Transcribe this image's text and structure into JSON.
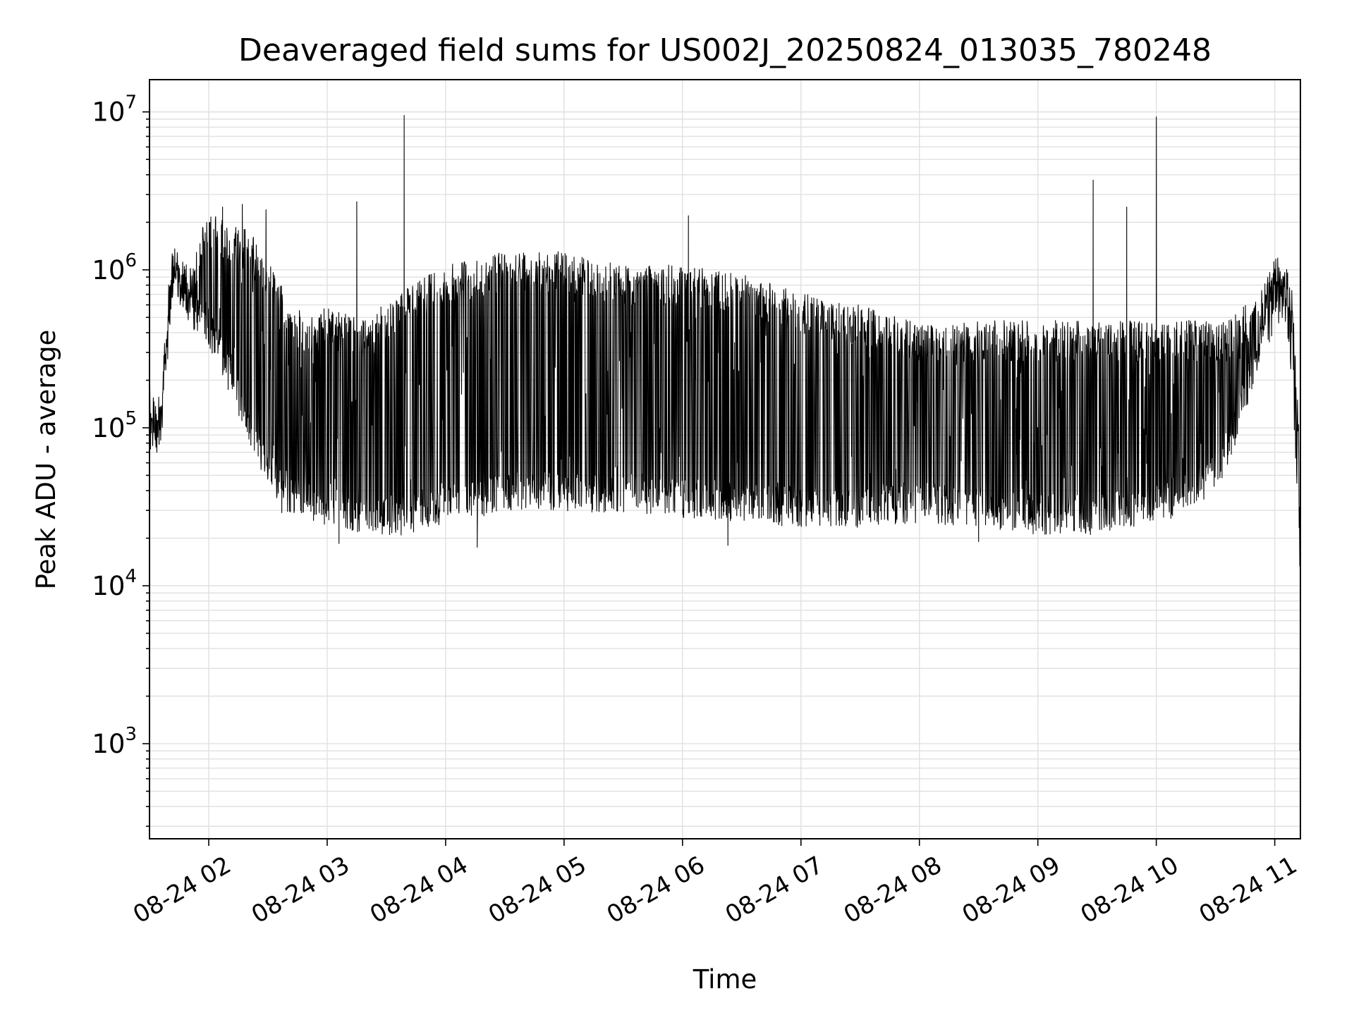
{
  "chart_data": {
    "type": "line",
    "title": "Deaveraged field sums for US002J_20250824_013035_780248",
    "xlabel": "Time",
    "ylabel": "Peak ADU - average",
    "y_scale": "log",
    "ylim": [
      250,
      16000000
    ],
    "xlim": [
      "2025-08-24 01:30",
      "2025-08-24 11:13"
    ],
    "x_ticks": [
      {
        "t": "2025-08-24 02:00",
        "label": "08-24 02"
      },
      {
        "t": "2025-08-24 03:00",
        "label": "08-24 03"
      },
      {
        "t": "2025-08-24 04:00",
        "label": "08-24 04"
      },
      {
        "t": "2025-08-24 05:00",
        "label": "08-24 05"
      },
      {
        "t": "2025-08-24 06:00",
        "label": "08-24 06"
      },
      {
        "t": "2025-08-24 07:00",
        "label": "08-24 07"
      },
      {
        "t": "2025-08-24 08:00",
        "label": "08-24 08"
      },
      {
        "t": "2025-08-24 09:00",
        "label": "08-24 09"
      },
      {
        "t": "2025-08-24 10:00",
        "label": "08-24 10"
      },
      {
        "t": "2025-08-24 11:00",
        "label": "08-24 11"
      }
    ],
    "y_ticks": [
      {
        "value": 1000,
        "base": "10",
        "exp": "3"
      },
      {
        "value": 10000,
        "base": "10",
        "exp": "4"
      },
      {
        "value": 100000,
        "base": "10",
        "exp": "5"
      },
      {
        "value": 1000000,
        "base": "10",
        "exp": "6"
      },
      {
        "value": 10000000,
        "base": "10",
        "exp": "7"
      }
    ],
    "grid": true,
    "line_color": "#000000",
    "series": [
      {
        "description": "signal envelope (noisy trace oscillates between low and high bands)",
        "x": [
          "2025-08-24 01:30",
          "2025-08-24 01:33",
          "2025-08-24 01:36",
          "2025-08-24 01:39",
          "2025-08-24 01:42",
          "2025-08-24 01:45",
          "2025-08-24 01:50",
          "2025-08-24 02:00",
          "2025-08-24 02:10",
          "2025-08-24 02:20",
          "2025-08-24 02:30",
          "2025-08-24 02:40",
          "2025-08-24 02:50",
          "2025-08-24 03:00",
          "2025-08-24 03:20",
          "2025-08-24 03:40",
          "2025-08-24 04:00",
          "2025-08-24 04:30",
          "2025-08-24 05:00",
          "2025-08-24 05:30",
          "2025-08-24 06:00",
          "2025-08-24 06:30",
          "2025-08-24 07:00",
          "2025-08-24 07:30",
          "2025-08-24 08:00",
          "2025-08-24 08:30",
          "2025-08-24 09:00",
          "2025-08-24 09:30",
          "2025-08-24 10:00",
          "2025-08-24 10:20",
          "2025-08-24 10:35",
          "2025-08-24 10:45",
          "2025-08-24 10:55",
          "2025-08-24 11:00",
          "2025-08-24 11:05",
          "2025-08-24 11:09",
          "2025-08-24 11:12",
          "2025-08-24 11:13"
        ],
        "low": [
          90000,
          70000,
          100000,
          300000,
          800000,
          700000,
          500000,
          400000,
          200000,
          100000,
          50000,
          35000,
          30000,
          28000,
          25000,
          25000,
          30000,
          35000,
          35000,
          35000,
          32000,
          30000,
          28000,
          28000,
          30000,
          28000,
          25000,
          25000,
          30000,
          35000,
          55000,
          150000,
          350000,
          500000,
          600000,
          200000,
          30000,
          8000
        ],
        "high": [
          200000,
          120000,
          150000,
          600000,
          1300000,
          1000000,
          900000,
          2000000,
          1700000,
          1500000,
          1000000,
          600000,
          400000,
          500000,
          400000,
          700000,
          900000,
          1100000,
          1100000,
          900000,
          900000,
          800000,
          600000,
          500000,
          400000,
          400000,
          400000,
          400000,
          400000,
          400000,
          400000,
          500000,
          700000,
          1000000,
          1000000,
          600000,
          100000,
          8000
        ]
      }
    ],
    "spikes": [
      {
        "t": "2025-08-24 02:07",
        "value": 2500000
      },
      {
        "t": "2025-08-24 02:17",
        "value": 2600000
      },
      {
        "t": "2025-08-24 02:29",
        "value": 2400000
      },
      {
        "t": "2025-08-24 03:15",
        "value": 2700000
      },
      {
        "t": "2025-08-24 03:39",
        "value": 9500000
      },
      {
        "t": "2025-08-24 06:03",
        "value": 2200000
      },
      {
        "t": "2025-08-24 09:28",
        "value": 3700000
      },
      {
        "t": "2025-08-24 09:45",
        "value": 2500000
      },
      {
        "t": "2025-08-24 10:00",
        "value": 9300000
      }
    ],
    "dips": [
      {
        "t": "2025-08-24 02:37",
        "value": 29000
      },
      {
        "t": "2025-08-24 03:06",
        "value": 18500
      },
      {
        "t": "2025-08-24 04:16",
        "value": 17500
      },
      {
        "t": "2025-08-24 06:23",
        "value": 18000
      },
      {
        "t": "2025-08-24 08:30",
        "value": 19000
      }
    ]
  }
}
